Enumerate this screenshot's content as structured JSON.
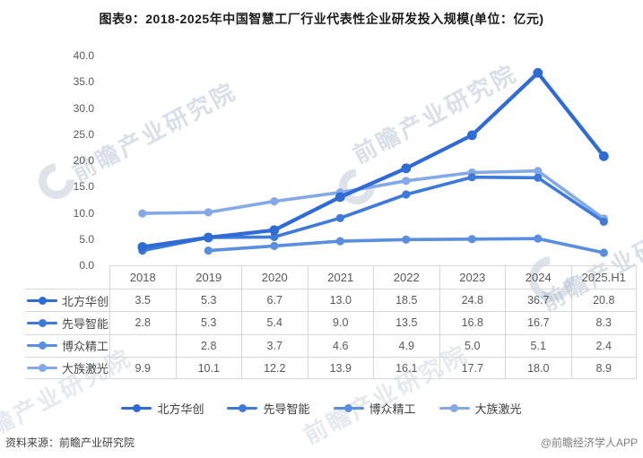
{
  "title": "图表9：2018-2025年中国智慧工厂行业代表性企业研发投入规模(单位：亿元)",
  "chart_data": {
    "type": "line",
    "title": "图表9：2018-2025年中国智慧工厂行业代表性企业研发投入规模(单位：亿元)",
    "unit": "亿元",
    "categories": [
      "2018",
      "2019",
      "2020",
      "2021",
      "2022",
      "2023",
      "2024",
      "2025.H1"
    ],
    "series": [
      {
        "name": "北方华创",
        "color": "#2F6BD4",
        "values": [
          3.5,
          5.3,
          6.7,
          13.0,
          18.5,
          24.8,
          36.7,
          20.8
        ]
      },
      {
        "name": "先导智能",
        "color": "#3D7ADA",
        "values": [
          2.8,
          5.3,
          5.4,
          9.0,
          13.5,
          16.8,
          16.7,
          8.3
        ]
      },
      {
        "name": "博众精工",
        "color": "#5A8EDF",
        "values": [
          null,
          2.8,
          3.7,
          4.6,
          4.9,
          5.0,
          5.1,
          2.4
        ]
      },
      {
        "name": "大族激光",
        "color": "#84A9E8",
        "values": [
          9.9,
          10.1,
          12.2,
          13.9,
          16.1,
          17.7,
          18.0,
          8.9
        ]
      }
    ],
    "y_axis": {
      "min": 0,
      "max": 40,
      "ticks": [
        0,
        5,
        10,
        15,
        20,
        25,
        30,
        35,
        40
      ],
      "tick_labels": [
        "0.0",
        "5.0",
        "10.0",
        "15.0",
        "20.0",
        "25.0",
        "30.0",
        "35.0",
        "40.0"
      ]
    },
    "grid": false,
    "legend_position": "bottom",
    "data_table_shown": true
  },
  "watermark": {
    "text": "前瞻产业研究院"
  },
  "footer": {
    "source": "资料来源：前瞻产业研究院",
    "credit": "@前瞻经济学人APP"
  }
}
